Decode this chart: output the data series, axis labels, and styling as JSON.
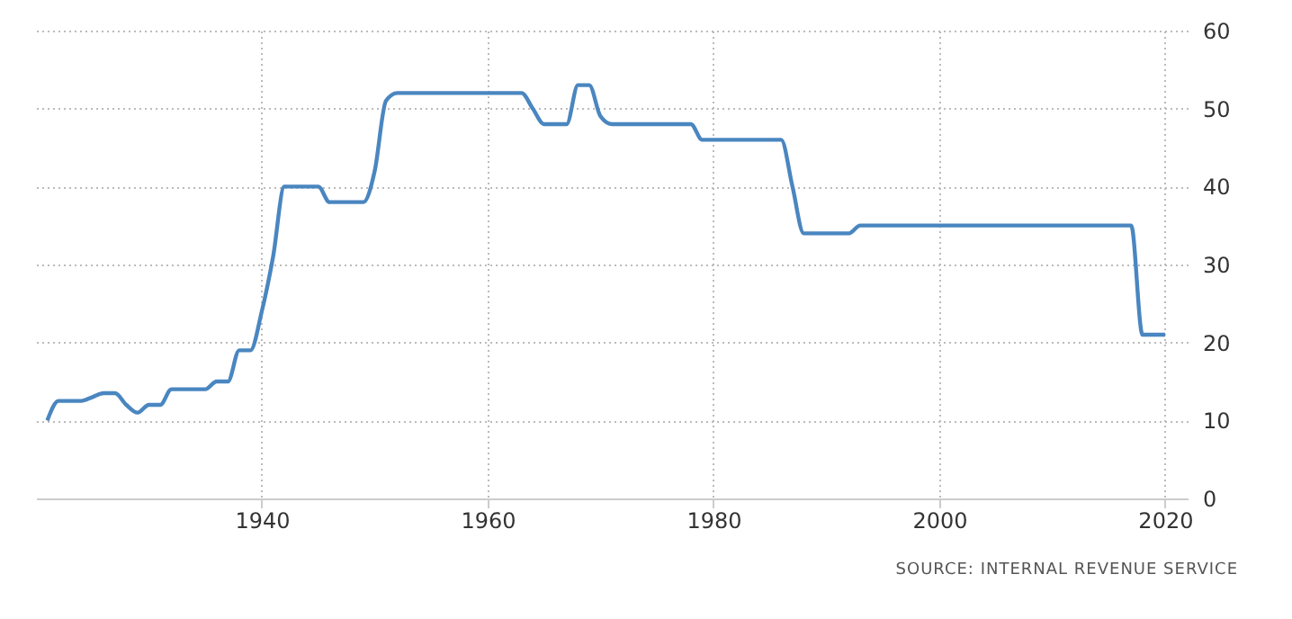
{
  "chart_data": {
    "type": "line",
    "x": [
      1921,
      1922,
      1924,
      1925,
      1926,
      1927,
      1928,
      1929,
      1930,
      1931,
      1932,
      1935,
      1936,
      1937,
      1938,
      1939,
      1940,
      1941,
      1942,
      1945,
      1946,
      1949,
      1950,
      1951,
      1952,
      1963,
      1964,
      1965,
      1967,
      1968,
      1969,
      1970,
      1971,
      1978,
      1979,
      1986,
      1987,
      1988,
      1992,
      1993,
      2016,
      2017,
      2018,
      2020
    ],
    "series": [
      {
        "color": "#4a86c0",
        "values": [
          10,
          12.5,
          12.5,
          13,
          13.5,
          13.5,
          12,
          11,
          12,
          12,
          14,
          14,
          15,
          15,
          19,
          19,
          24,
          31,
          40,
          40,
          38,
          38,
          42,
          51,
          52,
          52,
          50,
          48,
          48,
          53,
          53,
          49,
          48,
          48,
          46,
          46,
          40,
          34,
          34,
          35,
          35,
          35,
          21,
          21
        ]
      }
    ],
    "xlim": [
      1920,
      2022
    ],
    "xticks": [
      1940,
      1960,
      1980,
      2000,
      2020
    ],
    "ylim": [
      0,
      60
    ],
    "yticks": [
      0,
      10,
      20,
      30,
      40,
      50,
      60
    ],
    "grid": true,
    "line_style": "solid",
    "annotations": [
      "SOURCE: INTERNAL REVENUE SERVICE"
    ]
  }
}
